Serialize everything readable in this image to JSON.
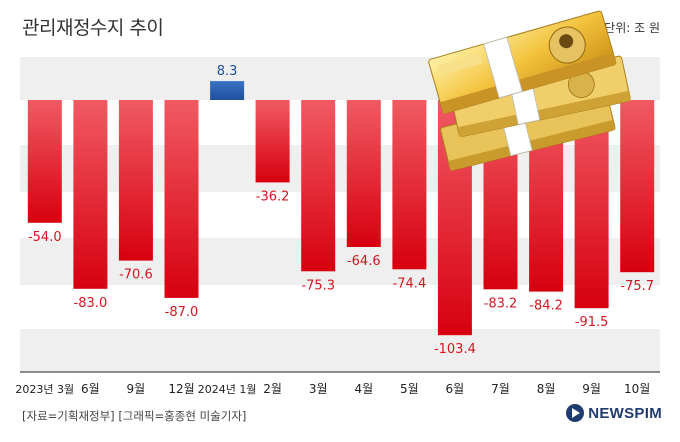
{
  "header": {
    "title": "관리재정수지 추이",
    "unit": "단위: 조 원"
  },
  "footer": {
    "source": "[자료=기획재정부] [그래픽=홍종현 미술기자]",
    "logo": "NEWSPIM"
  },
  "colors": {
    "negative_top": "#f05a63",
    "negative_bottom": "#d7000f",
    "positive_top": "#3a73c4",
    "positive_bottom": "#1d4f9c",
    "negative_label": "#d41620",
    "positive_label": "#1d4f9c",
    "band": "#efefef"
  },
  "chart_data": {
    "type": "bar",
    "categories": [
      "2023년 3월",
      "6월",
      "9월",
      "12월",
      "2024년 1월",
      "2월",
      "3월",
      "4월",
      "5월",
      "6월",
      "7월",
      "8월",
      "9월",
      "10월"
    ],
    "values": [
      -54.0,
      -83.0,
      -70.6,
      -87.0,
      8.3,
      -36.2,
      -75.3,
      -64.6,
      -74.4,
      -103.4,
      -83.2,
      -84.2,
      -91.5,
      -75.7
    ],
    "labels": [
      "-54.0",
      "-83.0",
      "-70.6",
      "-87.0",
      "8.3",
      "-36.2",
      "-75.3",
      "-64.6",
      "-74.4",
      "-103.4",
      "-83.2",
      "-84.2",
      "-91.5",
      "-75.7"
    ],
    "title": "관리재정수지 추이",
    "ylabel": "단위: 조 원",
    "ylim": [
      -120,
      25
    ],
    "grid": "horizontal bands",
    "legend": "none"
  }
}
